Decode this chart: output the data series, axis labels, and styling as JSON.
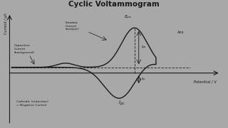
{
  "title": "Cyclic Voltammogram",
  "title_fontsize": 7.5,
  "bg_color_fig": "#a8a8a8",
  "bg_color_paper": "#d8d8d2",
  "curve_color": "#1a1a1a",
  "axis_color": "#1a1a1a",
  "xlabel": "Potential / V",
  "ylabel": "Current / μA",
  "capacitive_label": "Capacitive\nCurrent\n(background)",
  "faradaic_label": "Faradaic\nCurrent\n(analyte)",
  "cathodic_label": "Cathodic (reduction)\n= Negative Current",
  "epa_label": "E_pa",
  "ipa_label": "i_pa",
  "ipc_small_label": "i_pc",
  "Ipc_label": "I_pc",
  "anodic_label": "Ano"
}
